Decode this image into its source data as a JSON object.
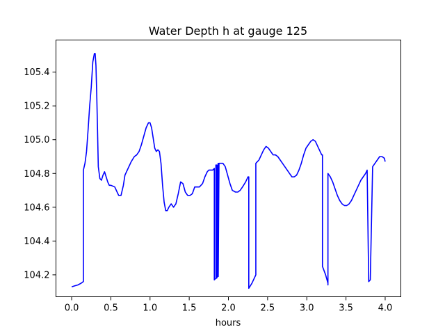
{
  "chart_data": {
    "type": "line",
    "title": "Water Depth h at gauge 125",
    "xlabel": "hours",
    "ylabel": "",
    "xlim": [
      -0.2,
      4.2
    ],
    "ylim": [
      104.07,
      105.59
    ],
    "xticks": [
      0.0,
      0.5,
      1.0,
      1.5,
      2.0,
      2.5,
      3.0,
      3.5,
      4.0
    ],
    "xtick_labels": [
      "0.0",
      "0.5",
      "1.0",
      "1.5",
      "2.0",
      "2.5",
      "3.0",
      "3.5",
      "4.0"
    ],
    "yticks": [
      104.2,
      104.4,
      104.6,
      104.8,
      105.0,
      105.2,
      105.4
    ],
    "ytick_labels": [
      "104.2",
      "104.4",
      "104.6",
      "104.8",
      "105.0",
      "105.2",
      "105.4"
    ],
    "grid": false,
    "color": "#0000ff",
    "series": [
      {
        "x": [
          0.0,
          0.01,
          0.04,
          0.08,
          0.12,
          0.15,
          0.15,
          0.17,
          0.19,
          0.21,
          0.23,
          0.25,
          0.27,
          0.29,
          0.3,
          0.31,
          0.32,
          0.33,
          0.34,
          0.36,
          0.38,
          0.4,
          0.42,
          0.44,
          0.46,
          0.48,
          0.5,
          0.55,
          0.58,
          0.6,
          0.63,
          0.66,
          0.68,
          0.7,
          0.72,
          0.76,
          0.8,
          0.83,
          0.86,
          0.89,
          0.92,
          0.95,
          0.98,
          1.0,
          1.02,
          1.04,
          1.06,
          1.08,
          1.1,
          1.12,
          1.14,
          1.16,
          1.18,
          1.2,
          1.22,
          1.24,
          1.27,
          1.3,
          1.33,
          1.36,
          1.39,
          1.42,
          1.45,
          1.48,
          1.51,
          1.54,
          1.57,
          1.6,
          1.63,
          1.67,
          1.7,
          1.73,
          1.75,
          1.78,
          1.8,
          1.82,
          1.82,
          1.84,
          1.84,
          1.85,
          1.85,
          1.86,
          1.86,
          1.87,
          1.87,
          1.88,
          1.9,
          1.93,
          1.96,
          1.99,
          2.02,
          2.05,
          2.09,
          2.12,
          2.15,
          2.18,
          2.22,
          2.25,
          2.26,
          2.26,
          2.3,
          2.34,
          2.35,
          2.35,
          2.39,
          2.42,
          2.45,
          2.48,
          2.51,
          2.54,
          2.57,
          2.6,
          2.63,
          2.66,
          2.69,
          2.72,
          2.75,
          2.78,
          2.81,
          2.84,
          2.87,
          2.9,
          2.93,
          2.96,
          2.99,
          3.02,
          3.05,
          3.08,
          3.11,
          3.14,
          3.17,
          3.19,
          3.2,
          3.2,
          3.24,
          3.27,
          3.27,
          3.27,
          3.3,
          3.33,
          3.36,
          3.39,
          3.42,
          3.45,
          3.48,
          3.51,
          3.54,
          3.57,
          3.6,
          3.63,
          3.66,
          3.69,
          3.72,
          3.75,
          3.77,
          3.77,
          3.79,
          3.81,
          3.81,
          3.84,
          3.87,
          3.9,
          3.93,
          3.96,
          3.99,
          4.0
        ],
        "y": [
          104.13,
          104.13,
          104.135,
          104.14,
          104.15,
          104.16,
          104.82,
          104.86,
          104.93,
          105.06,
          105.2,
          105.31,
          105.46,
          105.51,
          105.51,
          105.44,
          105.27,
          105.06,
          104.84,
          104.77,
          104.76,
          104.79,
          104.81,
          104.78,
          104.75,
          104.73,
          104.73,
          104.72,
          104.69,
          104.67,
          104.67,
          104.73,
          104.79,
          104.81,
          104.83,
          104.87,
          104.9,
          104.91,
          104.93,
          104.97,
          105.02,
          105.07,
          105.1,
          105.1,
          105.07,
          105.01,
          104.95,
          104.93,
          104.94,
          104.93,
          104.86,
          104.73,
          104.63,
          104.58,
          104.58,
          104.6,
          104.62,
          104.6,
          104.62,
          104.68,
          104.75,
          104.74,
          104.69,
          104.67,
          104.67,
          104.68,
          104.72,
          104.72,
          104.72,
          104.74,
          104.78,
          104.81,
          104.82,
          104.82,
          104.82,
          104.83,
          104.17,
          104.18,
          104.85,
          104.85,
          104.18,
          104.19,
          104.84,
          104.86,
          104.19,
          104.86,
          104.86,
          104.86,
          104.84,
          104.79,
          104.74,
          104.7,
          104.69,
          104.69,
          104.7,
          104.72,
          104.75,
          104.78,
          104.78,
          104.12,
          104.15,
          104.19,
          104.2,
          104.86,
          104.88,
          104.91,
          104.94,
          104.96,
          104.95,
          104.93,
          104.91,
          104.91,
          104.9,
          104.88,
          104.86,
          104.84,
          104.82,
          104.8,
          104.78,
          104.78,
          104.79,
          104.82,
          104.86,
          104.91,
          104.95,
          104.97,
          104.99,
          105.0,
          104.99,
          104.96,
          104.93,
          104.91,
          104.91,
          104.25,
          104.2,
          104.15,
          104.14,
          104.8,
          104.78,
          104.75,
          104.71,
          104.67,
          104.64,
          104.62,
          104.61,
          104.61,
          104.62,
          104.64,
          104.67,
          104.7,
          104.73,
          104.76,
          104.78,
          104.8,
          104.82,
          104.82,
          104.16,
          104.17,
          104.17,
          104.84,
          104.86,
          104.88,
          104.9,
          104.9,
          104.89,
          104.87
        ]
      }
    ]
  }
}
